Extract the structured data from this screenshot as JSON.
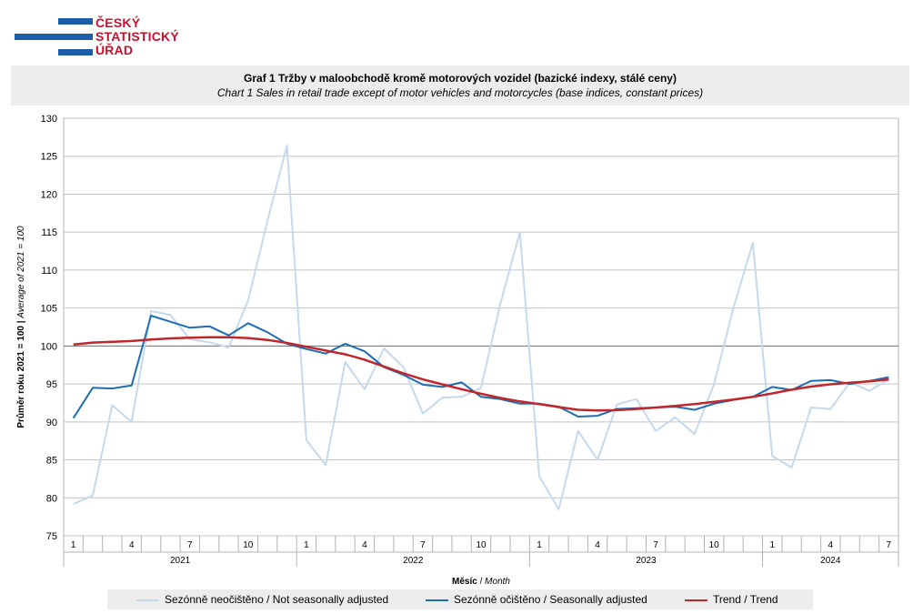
{
  "logo": {
    "lines": [
      "ČESKÝ",
      "STATISTICKÝ",
      "ÚŘAD"
    ],
    "bar_color": "#1d5ea8",
    "text_color": "#c8102e"
  },
  "title": {
    "main": "Graf 1 Tržby v maloobchodě kromě motorových vozidel (bazické indexy, stálé ceny)",
    "sub": "Chart 1 Sales in retail trade except of motor vehicles and motorcycles (base indices, constant prices)"
  },
  "chart_data": {
    "type": "line",
    "ylabel": "Průměr roku 2021 = 100 | Average of 2021 = 100",
    "ylabel_bold": "Průměr roku 2021 = 100",
    "ylabel_sep": " | ",
    "ylabel_italic": "Average of 2021 = 100",
    "xlabel_bold": "Měsíc",
    "xlabel_sep": " / ",
    "xlabel_italic": "Month",
    "ylim": [
      75,
      130
    ],
    "y_ticks": [
      75,
      80,
      85,
      90,
      95,
      100,
      105,
      110,
      115,
      120,
      125,
      130
    ],
    "grid": true,
    "legend_position": "bottom",
    "years": [
      "2021",
      "2022",
      "2023",
      "2024"
    ],
    "month_ticks": [
      "1",
      "4",
      "7",
      "10"
    ],
    "x_start": "2021-01",
    "x_end": "2024-07",
    "series": [
      {
        "name": "Sezónně neočištěno / Not seasonally adjusted",
        "color": "#c5d9ee",
        "values": [
          79.2,
          80.3,
          92.2,
          90.0,
          104.6,
          104.1,
          100.9,
          100.5,
          99.8,
          106.0,
          116.5,
          126.4,
          87.6,
          84.3,
          97.9,
          94.3,
          99.7,
          97.2,
          91.1,
          93.2,
          93.3,
          94.5,
          105.6,
          115.0,
          82.8,
          78.5,
          88.8,
          85.0,
          92.3,
          93.0,
          88.8,
          90.6,
          88.4,
          95.0,
          105.0,
          113.6,
          85.5,
          84.0,
          91.9,
          91.7,
          95.2,
          94.1,
          95.6
        ]
      },
      {
        "name": "Sezónně očištěno / Seasonally adjusted",
        "color": "#1c6db3",
        "values": [
          90.5,
          94.5,
          94.4,
          94.8,
          104.0,
          103.2,
          102.4,
          102.6,
          101.4,
          103.0,
          101.8,
          100.3,
          99.6,
          99.0,
          100.3,
          99.3,
          97.2,
          96.2,
          94.9,
          94.6,
          95.2,
          93.3,
          93.0,
          92.4,
          92.4,
          92.0,
          90.7,
          90.8,
          91.7,
          91.8,
          91.9,
          92.0,
          91.6,
          92.4,
          92.9,
          93.3,
          94.6,
          94.2,
          95.4,
          95.5,
          95.0,
          95.4,
          95.9
        ]
      },
      {
        "name": "Trend / Trend",
        "color": "#c0272d",
        "values": [
          100.2,
          100.45,
          100.55,
          100.65,
          100.85,
          101.0,
          101.1,
          101.15,
          101.15,
          101.05,
          100.8,
          100.4,
          99.9,
          99.4,
          98.9,
          98.2,
          97.3,
          96.4,
          95.6,
          94.95,
          94.3,
          93.7,
          93.15,
          92.7,
          92.35,
          91.95,
          91.6,
          91.5,
          91.55,
          91.7,
          91.9,
          92.1,
          92.35,
          92.65,
          92.95,
          93.3,
          93.75,
          94.25,
          94.65,
          94.95,
          95.15,
          95.35,
          95.6
        ]
      }
    ]
  }
}
